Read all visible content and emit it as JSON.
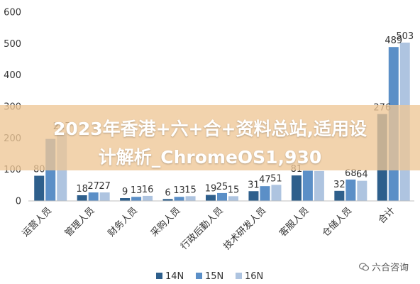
{
  "chart_data": {
    "type": "bar",
    "categories": [
      "运营人员",
      "管理人员",
      "财务人员",
      "采购人员",
      "行政后勤人员",
      "技术研发人员",
      "客服人员",
      "仓储人员",
      "合计"
    ],
    "series": [
      {
        "name": "14N",
        "values": [
          80,
          18,
          9,
          6,
          19,
          31,
          81,
          32,
          276
        ],
        "color": "#2e5f8c"
      },
      {
        "name": "15N",
        "values": [
          197,
          27,
          13,
          13,
          25,
          47,
          96,
          68,
          489
        ],
        "color": "#5b8fc7"
      },
      {
        "name": "16N",
        "values": [
          217,
          27,
          16,
          15,
          15,
          51,
          95,
          64,
          503
        ],
        "color": "#aec4e0"
      }
    ],
    "data_labels": [
      [
        "80",
        "",
        "217"
      ],
      [
        "18",
        "27",
        "27"
      ],
      [
        "9",
        "13",
        "16"
      ],
      [
        "6",
        "13",
        "15"
      ],
      [
        "19",
        "25",
        "15"
      ],
      [
        "31",
        "47",
        "51"
      ],
      [
        "81",
        "",
        ""
      ],
      [
        "32",
        "68",
        "64"
      ],
      [
        "276",
        "489",
        "503"
      ]
    ],
    "ylim": [
      0,
      600
    ],
    "yticks": [
      "0",
      "100",
      "200",
      "300",
      "400",
      "500",
      "600"
    ],
    "grid": false,
    "legend_position": "bottom"
  },
  "overlay": {
    "line1": "2023年香港+六+合+资料总站,适用设",
    "line2": "计解析_ChromeOS1,930"
  },
  "brand": {
    "label": "六合咨询",
    "icon": "wechat-icon"
  }
}
